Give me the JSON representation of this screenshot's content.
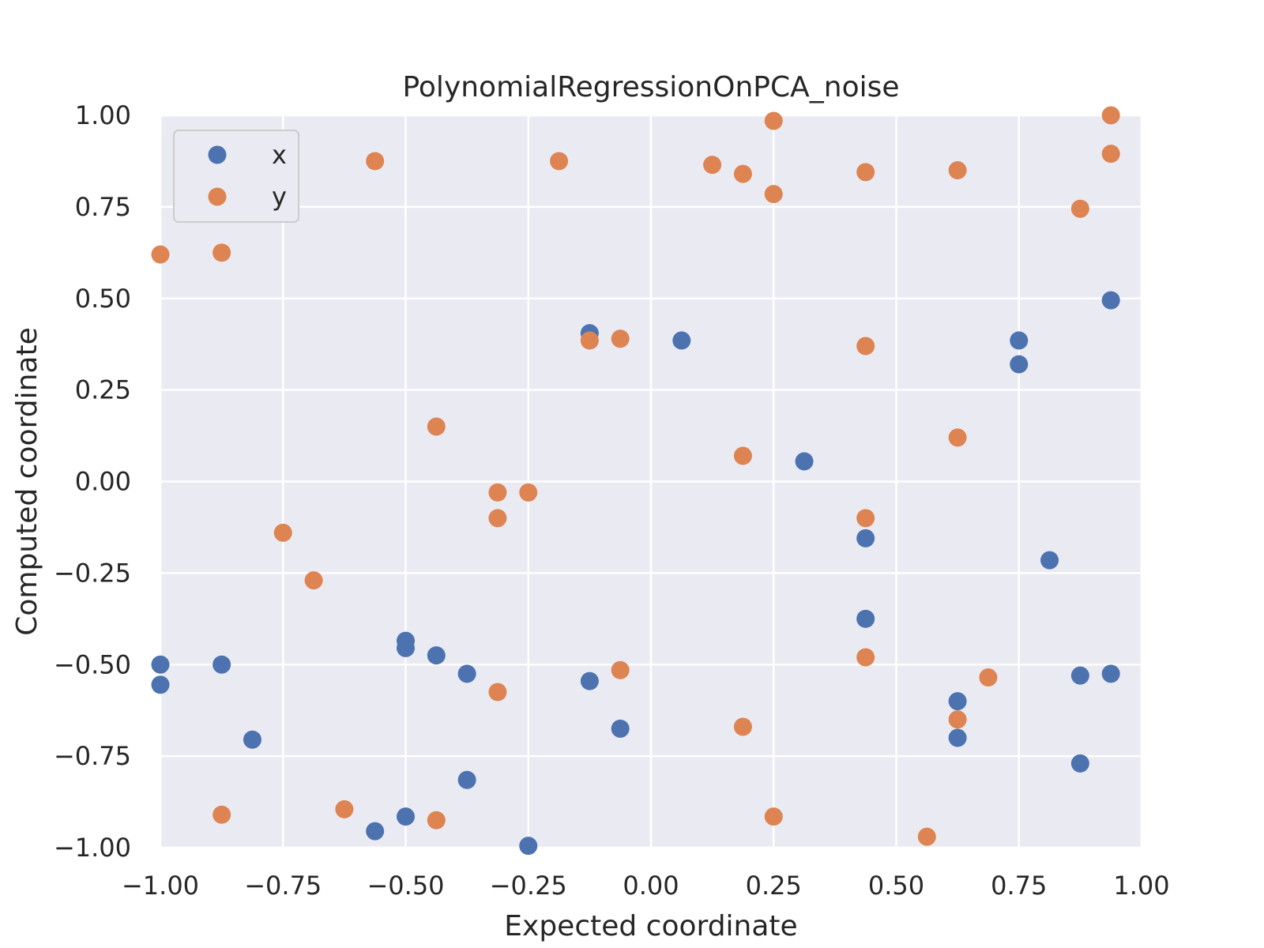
{
  "chart_data": {
    "type": "scatter",
    "title": "PolynomialRegressionOnPCA_noise",
    "xlabel": "Expected coordinate",
    "ylabel": "Computed coordinate",
    "xlim": [
      -1.0,
      1.0
    ],
    "ylim": [
      -1.0,
      1.0
    ],
    "xticks": [
      -1.0,
      -0.75,
      -0.5,
      -0.25,
      0.0,
      0.25,
      0.5,
      0.75,
      1.0
    ],
    "yticks": [
      -1.0,
      -0.75,
      -0.5,
      -0.25,
      0.0,
      0.25,
      0.5,
      0.75,
      1.0
    ],
    "xtick_labels": [
      "−1.00",
      "−0.75",
      "−0.50",
      "−0.25",
      "0.00",
      "0.25",
      "0.50",
      "0.75",
      "1.00"
    ],
    "ytick_labels": [
      "−1.00",
      "−0.75",
      "−0.50",
      "−0.25",
      "0.00",
      "0.25",
      "0.50",
      "0.75",
      "1.00"
    ],
    "grid": true,
    "legend_position": "top-left",
    "background": "#eaeaf2",
    "series": [
      {
        "name": "x",
        "color": "#4c72b0",
        "points": [
          [
            -1.0,
            -0.5
          ],
          [
            -1.0,
            -0.555
          ],
          [
            -0.875,
            -0.5
          ],
          [
            -0.8125,
            -0.705
          ],
          [
            -0.5625,
            -0.955
          ],
          [
            -0.5,
            -0.435
          ],
          [
            -0.5,
            -0.455
          ],
          [
            -0.5,
            -0.915
          ],
          [
            -0.4375,
            -0.475
          ],
          [
            -0.375,
            -0.525
          ],
          [
            -0.375,
            -0.815
          ],
          [
            -0.25,
            -0.995
          ],
          [
            -0.125,
            0.405
          ],
          [
            -0.125,
            -0.545
          ],
          [
            -0.0625,
            -0.675
          ],
          [
            0.0625,
            0.385
          ],
          [
            0.3125,
            0.055
          ],
          [
            0.4375,
            -0.155
          ],
          [
            0.4375,
            -0.375
          ],
          [
            0.625,
            -0.6
          ],
          [
            0.625,
            -0.7
          ],
          [
            0.75,
            0.385
          ],
          [
            0.75,
            0.32
          ],
          [
            0.8125,
            -0.215
          ],
          [
            0.875,
            -0.53
          ],
          [
            0.875,
            -0.77
          ],
          [
            0.9375,
            0.495
          ],
          [
            0.9375,
            -0.525
          ]
        ]
      },
      {
        "name": "y",
        "color": "#dd8452",
        "points": [
          [
            -1.0,
            0.62
          ],
          [
            -0.875,
            0.625
          ],
          [
            -0.875,
            -0.91
          ],
          [
            -0.75,
            -0.14
          ],
          [
            -0.6875,
            -0.27
          ],
          [
            -0.625,
            -0.895
          ],
          [
            -0.5625,
            0.875
          ],
          [
            -0.4375,
            0.15
          ],
          [
            -0.4375,
            -0.925
          ],
          [
            -0.3125,
            -0.03
          ],
          [
            -0.3125,
            -0.1
          ],
          [
            -0.3125,
            -0.575
          ],
          [
            -0.25,
            -0.03
          ],
          [
            -0.1875,
            0.875
          ],
          [
            -0.125,
            0.385
          ],
          [
            -0.0625,
            0.39
          ],
          [
            -0.0625,
            -0.515
          ],
          [
            0.125,
            0.865
          ],
          [
            0.1875,
            0.84
          ],
          [
            0.1875,
            0.07
          ],
          [
            0.1875,
            -0.67
          ],
          [
            0.25,
            0.985
          ],
          [
            0.25,
            0.785
          ],
          [
            0.25,
            -0.915
          ],
          [
            0.4375,
            0.845
          ],
          [
            0.4375,
            0.37
          ],
          [
            0.4375,
            -0.1
          ],
          [
            0.4375,
            -0.48
          ],
          [
            0.5625,
            -0.97
          ],
          [
            0.625,
            0.85
          ],
          [
            0.625,
            0.12
          ],
          [
            0.625,
            -0.65
          ],
          [
            0.6875,
            -0.535
          ],
          [
            0.875,
            0.745
          ],
          [
            0.9375,
            1.0
          ],
          [
            0.9375,
            0.895
          ]
        ]
      }
    ]
  }
}
